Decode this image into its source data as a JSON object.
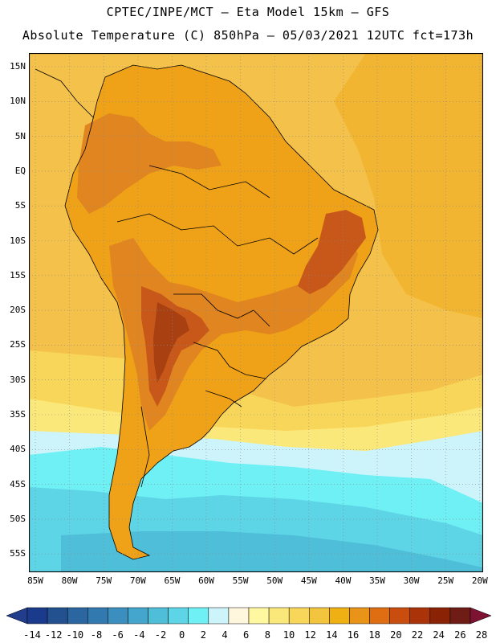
{
  "header": {
    "line1": "CPTEC/INPE/MCT —  Eta Model 15km — GFS",
    "line2": "Absolute Temperature (C) 850hPa — 05/03/2021 12UTC fct=173h"
  },
  "map": {
    "lat_labels": [
      "15N",
      "10N",
      "5N",
      "EQ",
      "5S",
      "10S",
      "15S",
      "20S",
      "25S",
      "30S",
      "35S",
      "40S",
      "45S",
      "50S",
      "55S"
    ],
    "lon_labels": [
      "85W",
      "80W",
      "75W",
      "70W",
      "65W",
      "60W",
      "55W",
      "50W",
      "45W",
      "40W",
      "35W",
      "30W",
      "25W",
      "20W"
    ]
  },
  "colorbar": {
    "labels": [
      "-14",
      "-12",
      "-10",
      "-8",
      "-6",
      "-4",
      "-2",
      "0",
      "2",
      "4",
      "6",
      "8",
      "10",
      "12",
      "14",
      "16",
      "18",
      "20",
      "22",
      "24",
      "26",
      "28"
    ],
    "colors": [
      "#1a3a8c",
      "#23508f",
      "#2b66a0",
      "#3279b0",
      "#3b8fbe",
      "#44a6cc",
      "#4fbfd9",
      "#5ed5e6",
      "#6ef0f5",
      "#cdf4fb",
      "#fff6de",
      "#fff8a0",
      "#fbe87a",
      "#f8d65a",
      "#f3c43d",
      "#efb013",
      "#e99318",
      "#df6d12",
      "#c84d0e",
      "#ab3309",
      "#8a2306",
      "#6e1c15"
    ],
    "low_color": "#223d8c",
    "high_color": "#7e1232"
  },
  "palette": {
    "ocean_hot": "#f1b532",
    "ocean_warm": "#f4c24a",
    "ocean_mild": "#f8d65a",
    "ocean_cool": "#fbe87a",
    "cold_pale": "#cdf4fb",
    "cold_cyan": "#6ef0f5",
    "cold_mid": "#5ed5e6",
    "cold_deep": "#4fbfd9",
    "land_warm": "#efa118",
    "land_hot": "#e08520",
    "land_very_hot": "#c8581a",
    "land_extreme": "#a84012",
    "border": "#000000"
  }
}
